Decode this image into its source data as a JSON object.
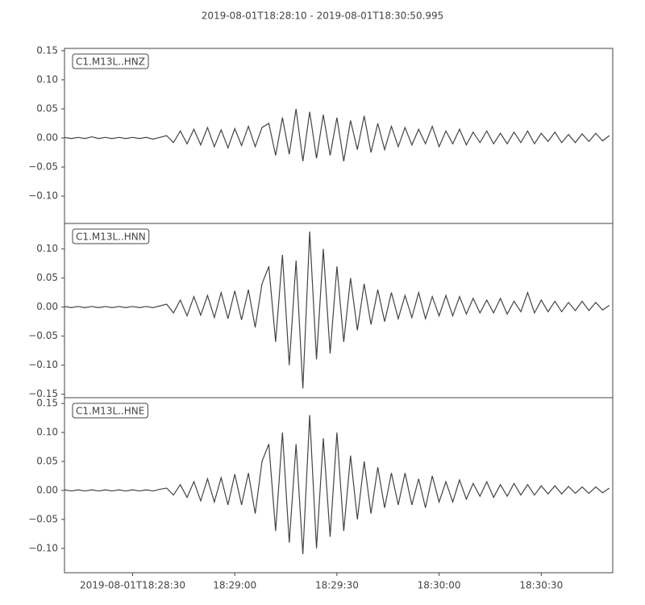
{
  "title": "2019-08-01T18:28:10  -  2019-08-01T18:30:50.995",
  "chart_data": [
    {
      "type": "line",
      "legend": "upper left",
      "xlim": [
        "2019-08-01T18:28:10",
        "2019-08-01T18:30:50.995"
      ],
      "ylim": [
        -0.147,
        0.154
      ],
      "yticks": [
        {
          "value": -0.1,
          "label": "−0.10"
        },
        {
          "value": -0.05,
          "label": "−0.05"
        },
        {
          "value": 0,
          "label": "0.00"
        },
        {
          "value": 0.05,
          "label": "0.05"
        },
        {
          "value": 0.1,
          "label": "0.10"
        },
        {
          "value": 0.15,
          "label": "0.15"
        }
      ],
      "x": [
        "2019-08-01T18:28:10",
        "2019-08-01T18:28:12",
        "2019-08-01T18:28:14",
        "2019-08-01T18:28:16",
        "2019-08-01T18:28:18",
        "2019-08-01T18:28:20",
        "2019-08-01T18:28:22",
        "2019-08-01T18:28:24",
        "2019-08-01T18:28:26",
        "2019-08-01T18:28:28",
        "2019-08-01T18:28:30",
        "2019-08-01T18:28:32",
        "2019-08-01T18:28:34",
        "2019-08-01T18:28:36",
        "2019-08-01T18:28:38",
        "2019-08-01T18:28:40",
        "2019-08-01T18:28:42",
        "2019-08-01T18:28:44",
        "2019-08-01T18:28:46",
        "2019-08-01T18:28:48",
        "2019-08-01T18:28:50",
        "2019-08-01T18:28:52",
        "2019-08-01T18:28:54",
        "2019-08-01T18:28:56",
        "2019-08-01T18:28:58",
        "2019-08-01T18:29:00",
        "2019-08-01T18:29:02",
        "2019-08-01T18:29:04",
        "2019-08-01T18:29:06",
        "2019-08-01T18:29:08",
        "2019-08-01T18:29:10",
        "2019-08-01T18:29:12",
        "2019-08-01T18:29:14",
        "2019-08-01T18:29:16",
        "2019-08-01T18:29:18",
        "2019-08-01T18:29:20",
        "2019-08-01T18:29:22",
        "2019-08-01T18:29:24",
        "2019-08-01T18:29:26",
        "2019-08-01T18:29:28",
        "2019-08-01T18:29:30",
        "2019-08-01T18:29:32",
        "2019-08-01T18:29:34",
        "2019-08-01T18:29:36",
        "2019-08-01T18:29:38",
        "2019-08-01T18:29:40",
        "2019-08-01T18:29:42",
        "2019-08-01T18:29:44",
        "2019-08-01T18:29:46",
        "2019-08-01T18:29:48",
        "2019-08-01T18:29:50",
        "2019-08-01T18:29:52",
        "2019-08-01T18:29:54",
        "2019-08-01T18:29:56",
        "2019-08-01T18:29:58",
        "2019-08-01T18:30:00",
        "2019-08-01T18:30:02",
        "2019-08-01T18:30:04",
        "2019-08-01T18:30:06",
        "2019-08-01T18:30:08",
        "2019-08-01T18:30:10",
        "2019-08-01T18:30:12",
        "2019-08-01T18:30:14",
        "2019-08-01T18:30:16",
        "2019-08-01T18:30:18",
        "2019-08-01T18:30:20",
        "2019-08-01T18:30:22",
        "2019-08-01T18:30:24",
        "2019-08-01T18:30:26",
        "2019-08-01T18:30:28",
        "2019-08-01T18:30:30",
        "2019-08-01T18:30:32",
        "2019-08-01T18:30:34",
        "2019-08-01T18:30:36",
        "2019-08-01T18:30:38",
        "2019-08-01T18:30:40",
        "2019-08-01T18:30:42",
        "2019-08-01T18:30:44",
        "2019-08-01T18:30:46",
        "2019-08-01T18:30:48",
        "2019-08-01T18:30:50"
      ],
      "series": [
        {
          "name": "C1.M13L..HNZ",
          "color": "#444444",
          "values": [
            0.001,
            -0.001,
            0.001,
            -0.001,
            0.002,
            -0.001,
            0.001,
            -0.001,
            0.001,
            -0.001,
            0.001,
            -0.001,
            0.001,
            -0.002,
            0.001,
            0.004,
            -0.008,
            0.012,
            -0.01,
            0.015,
            -0.012,
            0.018,
            -0.015,
            0.014,
            -0.017,
            0.016,
            -0.013,
            0.02,
            -0.015,
            0.018,
            0.025,
            -0.03,
            0.035,
            -0.028,
            0.05,
            -0.04,
            0.045,
            -0.035,
            0.04,
            -0.03,
            0.035,
            -0.04,
            0.03,
            -0.02,
            0.038,
            -0.025,
            0.025,
            -0.02,
            0.02,
            -0.015,
            0.018,
            -0.012,
            0.015,
            -0.01,
            0.02,
            -0.015,
            0.012,
            -0.01,
            0.015,
            -0.012,
            0.01,
            -0.008,
            0.012,
            -0.01,
            0.008,
            -0.01,
            0.01,
            -0.008,
            0.012,
            -0.01,
            0.008,
            -0.006,
            0.01,
            -0.008,
            0.006,
            -0.008,
            0.007,
            -0.006,
            0.008,
            -0.005,
            0.004
          ]
        }
      ]
    },
    {
      "type": "line",
      "legend": "upper left",
      "xlim": [
        "2019-08-01T18:28:10",
        "2019-08-01T18:30:50.995"
      ],
      "ylim": [
        -0.156,
        0.144
      ],
      "yticks": [
        {
          "value": -0.15,
          "label": "−0.15"
        },
        {
          "value": -0.1,
          "label": "−0.10"
        },
        {
          "value": -0.05,
          "label": "−0.05"
        },
        {
          "value": 0,
          "label": "0.00"
        },
        {
          "value": 0.05,
          "label": "0.05"
        },
        {
          "value": 0.1,
          "label": "0.10"
        }
      ],
      "x": [
        "2019-08-01T18:28:10",
        "2019-08-01T18:28:12",
        "2019-08-01T18:28:14",
        "2019-08-01T18:28:16",
        "2019-08-01T18:28:18",
        "2019-08-01T18:28:20",
        "2019-08-01T18:28:22",
        "2019-08-01T18:28:24",
        "2019-08-01T18:28:26",
        "2019-08-01T18:28:28",
        "2019-08-01T18:28:30",
        "2019-08-01T18:28:32",
        "2019-08-01T18:28:34",
        "2019-08-01T18:28:36",
        "2019-08-01T18:28:38",
        "2019-08-01T18:28:40",
        "2019-08-01T18:28:42",
        "2019-08-01T18:28:44",
        "2019-08-01T18:28:46",
        "2019-08-01T18:28:48",
        "2019-08-01T18:28:50",
        "2019-08-01T18:28:52",
        "2019-08-01T18:28:54",
        "2019-08-01T18:28:56",
        "2019-08-01T18:28:58",
        "2019-08-01T18:29:00",
        "2019-08-01T18:29:02",
        "2019-08-01T18:29:04",
        "2019-08-01T18:29:06",
        "2019-08-01T18:29:08",
        "2019-08-01T18:29:10",
        "2019-08-01T18:29:12",
        "2019-08-01T18:29:14",
        "2019-08-01T18:29:16",
        "2019-08-01T18:29:18",
        "2019-08-01T18:29:20",
        "2019-08-01T18:29:22",
        "2019-08-01T18:29:24",
        "2019-08-01T18:29:26",
        "2019-08-01T18:29:28",
        "2019-08-01T18:29:30",
        "2019-08-01T18:29:32",
        "2019-08-01T18:29:34",
        "2019-08-01T18:29:36",
        "2019-08-01T18:29:38",
        "2019-08-01T18:29:40",
        "2019-08-01T18:29:42",
        "2019-08-01T18:29:44",
        "2019-08-01T18:29:46",
        "2019-08-01T18:29:48",
        "2019-08-01T18:29:50",
        "2019-08-01T18:29:52",
        "2019-08-01T18:29:54",
        "2019-08-01T18:29:56",
        "2019-08-01T18:29:58",
        "2019-08-01T18:30:00",
        "2019-08-01T18:30:02",
        "2019-08-01T18:30:04",
        "2019-08-01T18:30:06",
        "2019-08-01T18:30:08",
        "2019-08-01T18:30:10",
        "2019-08-01T18:30:12",
        "2019-08-01T18:30:14",
        "2019-08-01T18:30:16",
        "2019-08-01T18:30:18",
        "2019-08-01T18:30:20",
        "2019-08-01T18:30:22",
        "2019-08-01T18:30:24",
        "2019-08-01T18:30:26",
        "2019-08-01T18:30:28",
        "2019-08-01T18:30:30",
        "2019-08-01T18:30:32",
        "2019-08-01T18:30:34",
        "2019-08-01T18:30:36",
        "2019-08-01T18:30:38",
        "2019-08-01T18:30:40",
        "2019-08-01T18:30:42",
        "2019-08-01T18:30:44",
        "2019-08-01T18:30:46",
        "2019-08-01T18:30:48",
        "2019-08-01T18:30:50"
      ],
      "series": [
        {
          "name": "C1.M13L..HNN",
          "color": "#444444",
          "values": [
            0.001,
            -0.001,
            0.001,
            -0.001,
            0.001,
            -0.001,
            0.001,
            -0.001,
            0.001,
            -0.001,
            0.001,
            -0.001,
            0.001,
            -0.001,
            0.002,
            0.005,
            -0.01,
            0.012,
            -0.015,
            0.018,
            -0.014,
            0.02,
            -0.018,
            0.025,
            -0.02,
            0.028,
            -0.022,
            0.03,
            -0.035,
            0.04,
            0.07,
            -0.06,
            0.09,
            -0.1,
            0.08,
            -0.14,
            0.13,
            -0.09,
            0.1,
            -0.08,
            0.07,
            -0.06,
            0.05,
            -0.04,
            0.04,
            -0.03,
            0.03,
            -0.025,
            0.025,
            -0.02,
            0.02,
            -0.018,
            0.025,
            -0.02,
            0.018,
            -0.015,
            0.02,
            -0.015,
            0.018,
            -0.012,
            0.015,
            -0.01,
            0.012,
            -0.01,
            0.015,
            -0.012,
            0.01,
            -0.008,
            0.025,
            -0.01,
            0.012,
            -0.008,
            0.01,
            -0.008,
            0.008,
            -0.006,
            0.01,
            -0.006,
            0.008,
            -0.005,
            0.003
          ]
        }
      ]
    },
    {
      "type": "line",
      "legend": "upper left",
      "xlim": [
        "2019-08-01T18:28:10",
        "2019-08-01T18:30:50.995"
      ],
      "ylim": [
        -0.142,
        0.16
      ],
      "yticks": [
        {
          "value": -0.1,
          "label": "−0.10"
        },
        {
          "value": -0.05,
          "label": "−0.05"
        },
        {
          "value": 0,
          "label": "0.00"
        },
        {
          "value": 0.05,
          "label": "0.05"
        },
        {
          "value": 0.1,
          "label": "0.10"
        },
        {
          "value": 0.15,
          "label": "0.15"
        }
      ],
      "xticks": [
        {
          "value": "2019-08-01T18:28:30",
          "label": "2019-08-01T18:28:30"
        },
        {
          "value": "2019-08-01T18:29:00",
          "label": "18:29:00"
        },
        {
          "value": "2019-08-01T18:29:30",
          "label": "18:29:30"
        },
        {
          "value": "2019-08-01T18:30:00",
          "label": "18:30:00"
        },
        {
          "value": "2019-08-01T18:30:30",
          "label": "18:30:30"
        }
      ],
      "x": [
        "2019-08-01T18:28:10",
        "2019-08-01T18:28:12",
        "2019-08-01T18:28:14",
        "2019-08-01T18:28:16",
        "2019-08-01T18:28:18",
        "2019-08-01T18:28:20",
        "2019-08-01T18:28:22",
        "2019-08-01T18:28:24",
        "2019-08-01T18:28:26",
        "2019-08-01T18:28:28",
        "2019-08-01T18:28:30",
        "2019-08-01T18:28:32",
        "2019-08-01T18:28:34",
        "2019-08-01T18:28:36",
        "2019-08-01T18:28:38",
        "2019-08-01T18:28:40",
        "2019-08-01T18:28:42",
        "2019-08-01T18:28:44",
        "2019-08-01T18:28:46",
        "2019-08-01T18:28:48",
        "2019-08-01T18:28:50",
        "2019-08-01T18:28:52",
        "2019-08-01T18:28:54",
        "2019-08-01T18:28:56",
        "2019-08-01T18:28:58",
        "2019-08-01T18:29:00",
        "2019-08-01T18:29:02",
        "2019-08-01T18:29:04",
        "2019-08-01T18:29:06",
        "2019-08-01T18:29:08",
        "2019-08-01T18:29:10",
        "2019-08-01T18:29:12",
        "2019-08-01T18:29:14",
        "2019-08-01T18:29:16",
        "2019-08-01T18:29:18",
        "2019-08-01T18:29:20",
        "2019-08-01T18:29:22",
        "2019-08-01T18:29:24",
        "2019-08-01T18:29:26",
        "2019-08-01T18:29:28",
        "2019-08-01T18:29:30",
        "2019-08-01T18:29:32",
        "2019-08-01T18:29:34",
        "2019-08-01T18:29:36",
        "2019-08-01T18:29:38",
        "2019-08-01T18:29:40",
        "2019-08-01T18:29:42",
        "2019-08-01T18:29:44",
        "2019-08-01T18:29:46",
        "2019-08-01T18:29:48",
        "2019-08-01T18:29:50",
        "2019-08-01T18:29:52",
        "2019-08-01T18:29:54",
        "2019-08-01T18:29:56",
        "2019-08-01T18:29:58",
        "2019-08-01T18:30:00",
        "2019-08-01T18:30:02",
        "2019-08-01T18:30:04",
        "2019-08-01T18:30:06",
        "2019-08-01T18:30:08",
        "2019-08-01T18:30:10",
        "2019-08-01T18:30:12",
        "2019-08-01T18:30:14",
        "2019-08-01T18:30:16",
        "2019-08-01T18:30:18",
        "2019-08-01T18:30:20",
        "2019-08-01T18:30:22",
        "2019-08-01T18:30:24",
        "2019-08-01T18:30:26",
        "2019-08-01T18:30:28",
        "2019-08-01T18:30:30",
        "2019-08-01T18:30:32",
        "2019-08-01T18:30:34",
        "2019-08-01T18:30:36",
        "2019-08-01T18:30:38",
        "2019-08-01T18:30:40",
        "2019-08-01T18:30:42",
        "2019-08-01T18:30:44",
        "2019-08-01T18:30:46",
        "2019-08-01T18:30:48",
        "2019-08-01T18:30:50"
      ],
      "series": [
        {
          "name": "C1.M13L..HNE",
          "color": "#444444",
          "values": [
            0.001,
            -0.001,
            0.001,
            -0.001,
            0.001,
            -0.001,
            0.001,
            -0.001,
            0.001,
            -0.001,
            0.001,
            -0.001,
            0.001,
            -0.001,
            0.002,
            0.004,
            -0.008,
            0.01,
            -0.012,
            0.015,
            -0.018,
            0.02,
            -0.02,
            0.022,
            -0.025,
            0.028,
            -0.025,
            0.03,
            -0.04,
            0.05,
            0.08,
            -0.07,
            0.1,
            -0.09,
            0.08,
            -0.11,
            0.13,
            -0.1,
            0.09,
            -0.08,
            0.1,
            -0.07,
            0.06,
            -0.05,
            0.05,
            -0.04,
            0.04,
            -0.03,
            0.03,
            -0.025,
            0.03,
            -0.025,
            0.02,
            -0.03,
            0.025,
            -0.02,
            0.015,
            -0.02,
            0.018,
            -0.015,
            0.012,
            -0.01,
            0.015,
            -0.012,
            0.01,
            -0.01,
            0.012,
            -0.008,
            0.01,
            -0.008,
            0.008,
            -0.006,
            0.008,
            -0.006,
            0.007,
            -0.005,
            0.006,
            -0.005,
            0.006,
            -0.004,
            0.004
          ]
        }
      ]
    }
  ]
}
